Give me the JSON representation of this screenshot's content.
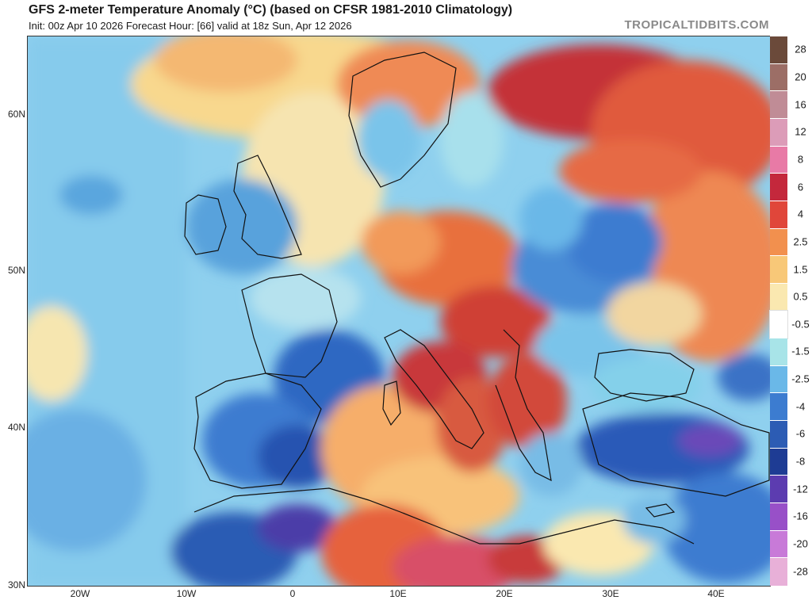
{
  "header": {
    "title": "GFS 2-meter Temperature Anomaly (°C) (based on CFSR 1981-2010 Climatology)",
    "subtitle": "Init: 00z Apr 10 2026   Forecast Hour: [66]   valid at 18z Sun, Apr 12 2026",
    "brand": "TROPICALTIDBITS.COM"
  },
  "map": {
    "lat_labels": [
      "60N",
      "50N",
      "40N",
      "30N"
    ],
    "lon_labels": [
      "20W",
      "10W",
      "0",
      "10E",
      "20E",
      "30E",
      "40E"
    ]
  },
  "legend": {
    "labels": [
      "28",
      "20",
      "16",
      "12",
      "8",
      "6",
      "4",
      "2.5",
      "1.5",
      "0.5",
      "-0.5",
      "-1.5",
      "-2.5",
      "-4",
      "-6",
      "-8",
      "-12",
      "-16",
      "-20",
      "-28"
    ],
    "colors": [
      "#6b4a3a",
      "#9c6e66",
      "#c08c96",
      "#dc9cb8",
      "#e87aa6",
      "#c4283c",
      "#e0463a",
      "#f2904e",
      "#f8c878",
      "#fae8b0",
      "#ffffff",
      "#a8e4e8",
      "#6ab8e8",
      "#3c7cd0",
      "#2c5cb4",
      "#1e3c94",
      "#5c3cb0",
      "#9850c8",
      "#c87ad8",
      "#e8b0d8"
    ]
  }
}
